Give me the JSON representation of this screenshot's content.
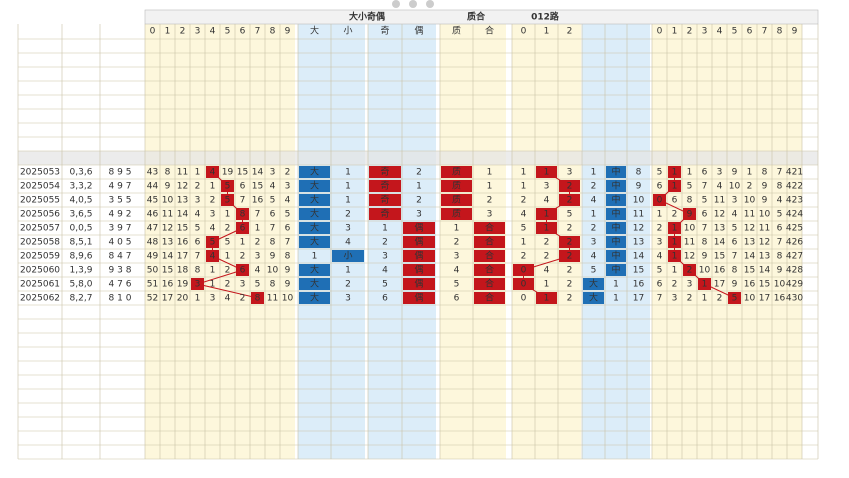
{
  "header": {
    "group_titles": [
      "大小奇偶",
      "质合",
      "012路"
    ],
    "digits": [
      "0",
      "1",
      "2",
      "3",
      "4",
      "5",
      "6",
      "7",
      "8",
      "9"
    ],
    "big_small": [
      "大",
      "小"
    ],
    "odd_even": [
      "奇",
      "偶"
    ],
    "prime_comp": [
      "质",
      "合"
    ],
    "routes": [
      "0",
      "1",
      "2"
    ],
    "span": [
      "0",
      "1",
      "2",
      "3",
      "4",
      "5",
      "6",
      "7",
      "8",
      "9"
    ]
  },
  "rows": [
    {
      "cells": [
        "2025053",
        "0,3,6",
        "8 9 5",
        "43",
        "8",
        "11",
        "1",
        "4",
        "19",
        "15",
        "14",
        "3",
        "2",
        "大",
        "1",
        "奇",
        "2",
        "质",
        "1",
        "1",
        "1",
        "3",
        "1",
        "中",
        "8",
        "5",
        "1",
        "1",
        "6",
        "3",
        "9",
        "1",
        "8",
        "7",
        "421"
      ],
      "hits": [
        7,
        13,
        15,
        17,
        20,
        23,
        26
      ]
    },
    {
      "cells": [
        "2025054",
        "3,3,2",
        "4 9 7",
        "44",
        "9",
        "12",
        "2",
        "1",
        "5",
        "6",
        "15",
        "4",
        "3",
        "大",
        "1",
        "奇",
        "1",
        "质",
        "1",
        "1",
        "3",
        "2",
        "2",
        "中",
        "9",
        "6",
        "1",
        "5",
        "7",
        "4",
        "10",
        "2",
        "9",
        "8",
        "422"
      ],
      "hits": [
        8,
        13,
        15,
        17,
        21,
        23,
        26
      ]
    },
    {
      "cells": [
        "2025055",
        "4,0,5",
        "3 5 5",
        "45",
        "10",
        "13",
        "3",
        "2",
        "5",
        "7",
        "16",
        "5",
        "4",
        "大",
        "1",
        "奇",
        "2",
        "质",
        "2",
        "2",
        "4",
        "2",
        "4",
        "中",
        "10",
        "0",
        "6",
        "8",
        "5",
        "11",
        "3",
        "10",
        "9",
        "4",
        "423"
      ],
      "hits": [
        8,
        13,
        15,
        17,
        21,
        23,
        25
      ]
    },
    {
      "cells": [
        "2025056",
        "3,6,5",
        "4 9 2",
        "46",
        "11",
        "14",
        "4",
        "3",
        "1",
        "8",
        "7",
        "6",
        "5",
        "大",
        "2",
        "奇",
        "3",
        "质",
        "3",
        "4",
        "1",
        "5",
        "1",
        "中",
        "11",
        "1",
        "2",
        "9",
        "6",
        "12",
        "4",
        "11",
        "10",
        "5",
        "424"
      ],
      "hits": [
        9,
        13,
        15,
        17,
        20,
        23,
        27
      ]
    },
    {
      "cells": [
        "2025057",
        "0,0,5",
        "3 9 7",
        "47",
        "12",
        "15",
        "5",
        "4",
        "2",
        "6",
        "1",
        "7",
        "6",
        "大",
        "3",
        "1",
        "偶",
        "1",
        "合",
        "5",
        "1",
        "2",
        "2",
        "中",
        "12",
        "2",
        "1",
        "10",
        "7",
        "13",
        "5",
        "12",
        "11",
        "6",
        "425"
      ],
      "hits": [
        9,
        13,
        16,
        18,
        20,
        23,
        26
      ]
    },
    {
      "cells": [
        "2025058",
        "8,5,1",
        "4 0 5",
        "48",
        "13",
        "16",
        "6",
        "5",
        "5",
        "1",
        "2",
        "8",
        "7",
        "大",
        "4",
        "2",
        "偶",
        "2",
        "合",
        "1",
        "2",
        "2",
        "3",
        "中",
        "13",
        "3",
        "1",
        "11",
        "8",
        "14",
        "6",
        "13",
        "12",
        "7",
        "426"
      ],
      "hits": [
        7,
        13,
        16,
        18,
        21,
        23,
        26
      ]
    },
    {
      "cells": [
        "2025059",
        "8,9,6",
        "8 4 7",
        "49",
        "14",
        "17",
        "7",
        "4",
        "1",
        "2",
        "3",
        "9",
        "8",
        "1",
        "小",
        "3",
        "偶",
        "3",
        "合",
        "2",
        "2",
        "2",
        "4",
        "中",
        "14",
        "4",
        "1",
        "12",
        "9",
        "15",
        "7",
        "14",
        "13",
        "8",
        "427"
      ],
      "hits": [
        7,
        14,
        16,
        18,
        21,
        23,
        26
      ]
    },
    {
      "cells": [
        "2025060",
        "1,3,9",
        "9 3 8",
        "50",
        "15",
        "18",
        "8",
        "1",
        "2",
        "6",
        "4",
        "10",
        "9",
        "大",
        "1",
        "4",
        "偶",
        "4",
        "合",
        "0",
        "4",
        "2",
        "5",
        "中",
        "15",
        "5",
        "1",
        "2",
        "10",
        "16",
        "8",
        "15",
        "14",
        "9",
        "428"
      ],
      "hits": [
        9,
        13,
        16,
        18,
        19,
        23,
        27
      ]
    },
    {
      "cells": [
        "2025061",
        "5,8,0",
        "4 7 6",
        "51",
        "16",
        "19",
        "3",
        "1",
        "2",
        "3",
        "5",
        "8",
        "9",
        "大",
        "2",
        "5",
        "偶",
        "5",
        "合",
        "0",
        "1",
        "2",
        "大",
        "1",
        "16",
        "6",
        "2",
        "3",
        "1",
        "17",
        "9",
        "16",
        "15",
        "10",
        "429"
      ],
      "hits": [
        6,
        13,
        16,
        18,
        19,
        22,
        28
      ]
    },
    {
      "cells": [
        "2025062",
        "8,2,7",
        "8 1 0",
        "52",
        "17",
        "20",
        "1",
        "3",
        "4",
        "2",
        "8",
        "11",
        "10",
        "大",
        "3",
        "6",
        "偶",
        "6",
        "合",
        "0",
        "1",
        "2",
        "大",
        "1",
        "17",
        "7",
        "3",
        "2",
        "1",
        "2",
        "5",
        "10",
        "17",
        "16",
        "430"
      ],
      "hits": [
        10,
        13,
        16,
        18,
        20,
        22,
        30
      ]
    }
  ]
}
